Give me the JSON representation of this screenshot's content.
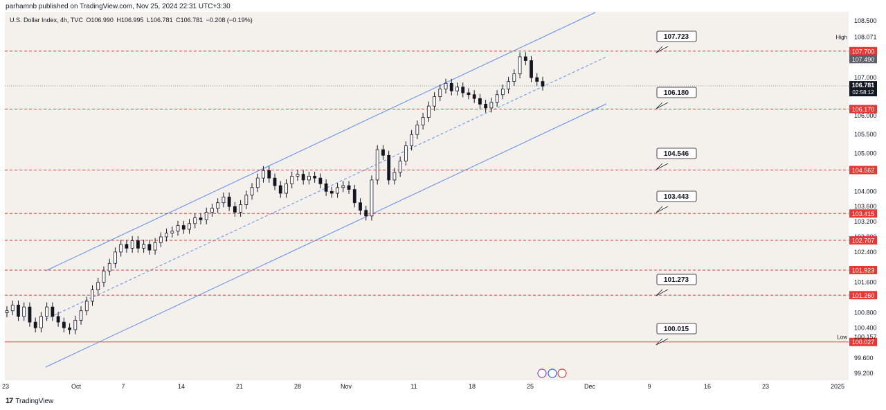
{
  "header": {
    "attribution": "parhamnb published on TradingView.com, Nov 25, 2024 22:31 UTC+3:30",
    "symbol": "U.S. Dollar Index, 4h, TVC",
    "open": "O106.990",
    "high": "H106.995",
    "low": "L106.781",
    "close": "C106.781",
    "change": "−0.208 (−0.19%)"
  },
  "footer": {
    "brand": "TradingView"
  },
  "colors": {
    "background": "#f4f0ec",
    "level_line": "#e53935",
    "channel": "#5b8def",
    "candle": "#131722",
    "price_badge": "#131722"
  },
  "chart_data": {
    "type": "candlestick",
    "symbol": "U.S. Dollar Index",
    "timeframe": "4h",
    "ylim": [
      99.2,
      108.5
    ],
    "y_ticks": [
      "108.500",
      "107.000",
      "106.000",
      "105.500",
      "105.000",
      "104.000",
      "103.600",
      "103.200",
      "102.800",
      "102.400",
      "101.600",
      "100.800",
      "100.400",
      "99.600",
      "99.200"
    ],
    "x_ticks": [
      "23",
      "Oct",
      "7",
      "14",
      "21",
      "28",
      "Nov",
      "11",
      "18",
      "25",
      "Dec",
      "9",
      "16",
      "23",
      "2025"
    ],
    "high_label": "High",
    "high_value": "108.071",
    "low_label": "Low",
    "low_value": "100.157",
    "current_price": "106.781",
    "countdown": "02:58:12",
    "last_tag": "107.490",
    "levels": [
      {
        "value": 107.7,
        "tag": "107.700",
        "callout": "107.723",
        "style": "dashed"
      },
      {
        "value": 106.17,
        "tag": "106.170",
        "callout": "106.180",
        "style": "dashed"
      },
      {
        "value": 104.562,
        "tag": "104.562",
        "callout": "104.546",
        "style": "dashed"
      },
      {
        "value": 103.415,
        "tag": "103.415",
        "callout": "103.443",
        "style": "dashed"
      },
      {
        "value": 102.707,
        "tag": "102.707",
        "callout": "",
        "style": "dashed"
      },
      {
        "value": 101.923,
        "tag": "101.923",
        "callout": "",
        "style": "dashed"
      },
      {
        "value": 101.26,
        "tag": "101.260",
        "callout": "101.273",
        "style": "dashed"
      },
      {
        "value": 100.027,
        "tag": "100.027",
        "callout": "100.015",
        "style": "solid"
      }
    ],
    "closes": [
      100.85,
      101.0,
      100.7,
      100.95,
      100.55,
      100.4,
      100.7,
      100.95,
      100.7,
      100.55,
      100.4,
      100.35,
      100.6,
      100.85,
      101.1,
      101.4,
      101.6,
      101.9,
      102.1,
      102.4,
      102.6,
      102.5,
      102.7,
      102.5,
      102.6,
      102.45,
      102.65,
      102.8,
      102.9,
      102.95,
      103.1,
      103.0,
      103.15,
      103.3,
      103.25,
      103.45,
      103.55,
      103.7,
      103.85,
      103.6,
      103.45,
      103.65,
      103.9,
      104.1,
      104.35,
      104.55,
      104.35,
      104.15,
      103.95,
      104.2,
      104.4,
      104.45,
      104.3,
      104.4,
      104.35,
      104.2,
      104.0,
      103.95,
      104.1,
      104.15,
      104.05,
      103.7,
      103.5,
      103.35,
      104.3,
      105.1,
      104.95,
      104.3,
      104.5,
      104.8,
      105.2,
      105.5,
      105.75,
      105.95,
      106.25,
      106.5,
      106.7,
      106.85,
      106.65,
      106.75,
      106.6,
      106.55,
      106.45,
      106.3,
      106.2,
      106.35,
      106.55,
      106.7,
      106.9,
      107.1,
      107.55,
      107.45,
      107.0,
      106.9,
      106.78
    ]
  }
}
